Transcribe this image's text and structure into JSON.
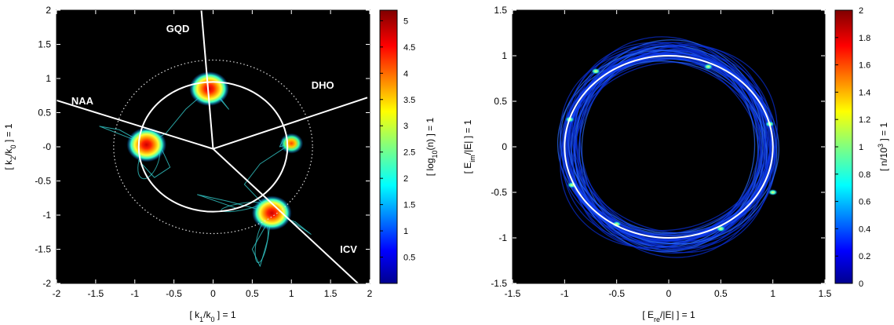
{
  "chart_data": [
    {
      "type": "heatmap",
      "title": "",
      "xlabel": "[ k_1/k_0 ] = 1",
      "ylabel": "[ k_2/k_0 ] = 1",
      "xlim": [
        -2,
        2
      ],
      "ylim": [
        -2,
        2
      ],
      "x_ticks": [
        -2,
        -1.5,
        -1,
        -0.5,
        0,
        0.5,
        1,
        1.5,
        2
      ],
      "y_ticks": [
        2,
        1.5,
        1,
        0.5,
        0,
        -0.5,
        -1,
        -1.5,
        -2
      ],
      "x_tick_labels": [
        "-2",
        "-1.5",
        "-1",
        "-0.5",
        "0",
        "0.5",
        "1",
        "1.5",
        "2"
      ],
      "y_tick_labels": [
        "2",
        "1.5",
        "1",
        "0.5",
        "-0",
        "-0.5",
        "-1",
        "-1.5",
        "-2"
      ],
      "background": "#000000",
      "colorbar": {
        "label": "[ log_10(n) ] = 1",
        "range": [
          0,
          5.2
        ],
        "ticks": [
          0.5,
          1,
          1.5,
          2,
          2.5,
          3,
          3.5,
          4,
          4.5,
          5
        ],
        "tick_labels": [
          "0.5",
          "1",
          "1.5",
          "2",
          "2.5",
          "3",
          "3.5",
          "4",
          "4.5",
          "5"
        ]
      },
      "circle_solid_radius": 0.95,
      "circle_dotted_radius": 1.27,
      "boundary_center": [
        0,
        -0.03
      ],
      "boundary_lines": [
        {
          "to": [
            -0.15,
            2
          ]
        },
        {
          "to": [
            1.97,
            0.72
          ]
        },
        {
          "to": [
            1.85,
            -2
          ]
        },
        {
          "to": [
            -2,
            0.68
          ]
        }
      ],
      "regions": [
        {
          "label": "GQD",
          "x": -0.45,
          "y": 1.68
        },
        {
          "label": "DHO",
          "x": 1.4,
          "y": 0.85
        },
        {
          "label": "NAA",
          "x": -1.67,
          "y": 0.62
        },
        {
          "label": "ICV",
          "x": 1.73,
          "y": -1.55
        }
      ],
      "clusters": [
        {
          "x": -0.05,
          "y": 0.85,
          "peak": 5.0
        },
        {
          "x": -0.85,
          "y": 0.03,
          "peak": 5.0
        },
        {
          "x": 1.0,
          "y": 0.05,
          "peak": 4.5
        },
        {
          "x": 0.75,
          "y": -0.97,
          "peak": 5.0
        }
      ]
    },
    {
      "type": "heatmap",
      "title": "",
      "xlabel": "[ E_re/|E| ] = 1",
      "ylabel": "[ E_im/|E| ] = 1",
      "xlim": [
        -1.5,
        1.5
      ],
      "ylim": [
        -1.5,
        1.5
      ],
      "x_ticks": [
        -1.5,
        -1,
        -0.5,
        0,
        0.5,
        1,
        1.5
      ],
      "y_ticks": [
        1.5,
        1,
        0.5,
        0,
        -0.5,
        -1,
        -1.5
      ],
      "x_tick_labels": [
        "-1.5",
        "-1",
        "-0.5",
        "0",
        "0.5",
        "1",
        "1.5"
      ],
      "y_tick_labels": [
        "1.5",
        "1",
        "0.5",
        "0",
        "-0.5",
        "-1",
        "-1.5"
      ],
      "background": "#000000",
      "colorbar": {
        "label": "[ n/10^3 ] = 1",
        "range": [
          0,
          2
        ],
        "ticks": [
          0,
          0.2,
          0.4,
          0.6,
          0.8,
          1,
          1.2,
          1.4,
          1.6,
          1.8,
          2
        ],
        "tick_labels": [
          "0",
          "0.2",
          "0.4",
          "0.6",
          "0.8",
          "1",
          "1.2",
          "1.4",
          "1.6",
          "1.8",
          "2"
        ]
      },
      "unit_circle_radius": 1.0,
      "ring_radius_range": [
        0.93,
        1.07
      ],
      "hotspots": [
        {
          "x": -0.7,
          "y": 0.83
        },
        {
          "x": 0.38,
          "y": 0.88
        },
        {
          "x": -0.95,
          "y": 0.3
        },
        {
          "x": -0.93,
          "y": -0.42
        },
        {
          "x": -0.5,
          "y": -0.85
        },
        {
          "x": 0.5,
          "y": -0.9
        },
        {
          "x": 0.97,
          "y": 0.25
        },
        {
          "x": 1.0,
          "y": -0.5
        }
      ]
    }
  ]
}
